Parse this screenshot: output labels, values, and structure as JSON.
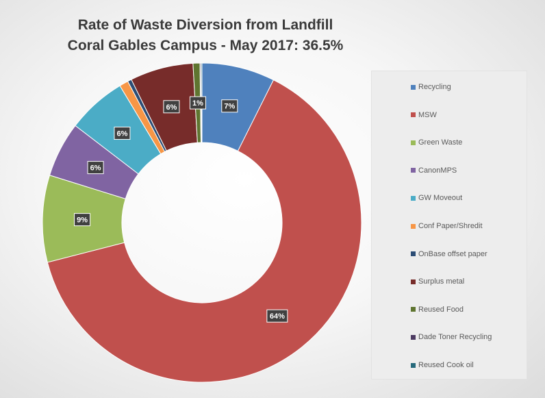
{
  "chart_data": {
    "type": "donut",
    "title_line1": "Rate of Waste Diversion from Landfill",
    "title_line2": "Coral Gables Campus - May 2017:  36.5%",
    "legend_position": "right",
    "slices": [
      {
        "name": "Recycling",
        "value": 7.4,
        "label": "7%",
        "color": "#4f81bd"
      },
      {
        "name": "MSW",
        "value": 63.6,
        "label": "64%",
        "color": "#c0504d"
      },
      {
        "name": "Green Waste",
        "value": 8.8,
        "label": "9%",
        "color": "#9bbb59"
      },
      {
        "name": "CanonMPS",
        "value": 5.6,
        "label": "6%",
        "color": "#8064a2"
      },
      {
        "name": "GW Moveout",
        "value": 6.0,
        "label": "6%",
        "color": "#4bacc6"
      },
      {
        "name": "Conf Paper/Shredit",
        "value": 0.9,
        "label": "",
        "color": "#f79646"
      },
      {
        "name": "OnBase offset paper",
        "value": 0.4,
        "label": "",
        "color": "#2c4d75"
      },
      {
        "name": "Surplus metal",
        "value": 6.4,
        "label": "6%",
        "color": "#772c2a"
      },
      {
        "name": "Reused Food",
        "value": 0.7,
        "label": "1%",
        "color": "#5f7530"
      },
      {
        "name": "Dade Toner Recycling",
        "value": 0.1,
        "label": "",
        "color": "#4d3b62"
      },
      {
        "name": "Reused Cook oil",
        "value": 0.1,
        "label": "",
        "color": "#276a7c"
      }
    ]
  }
}
